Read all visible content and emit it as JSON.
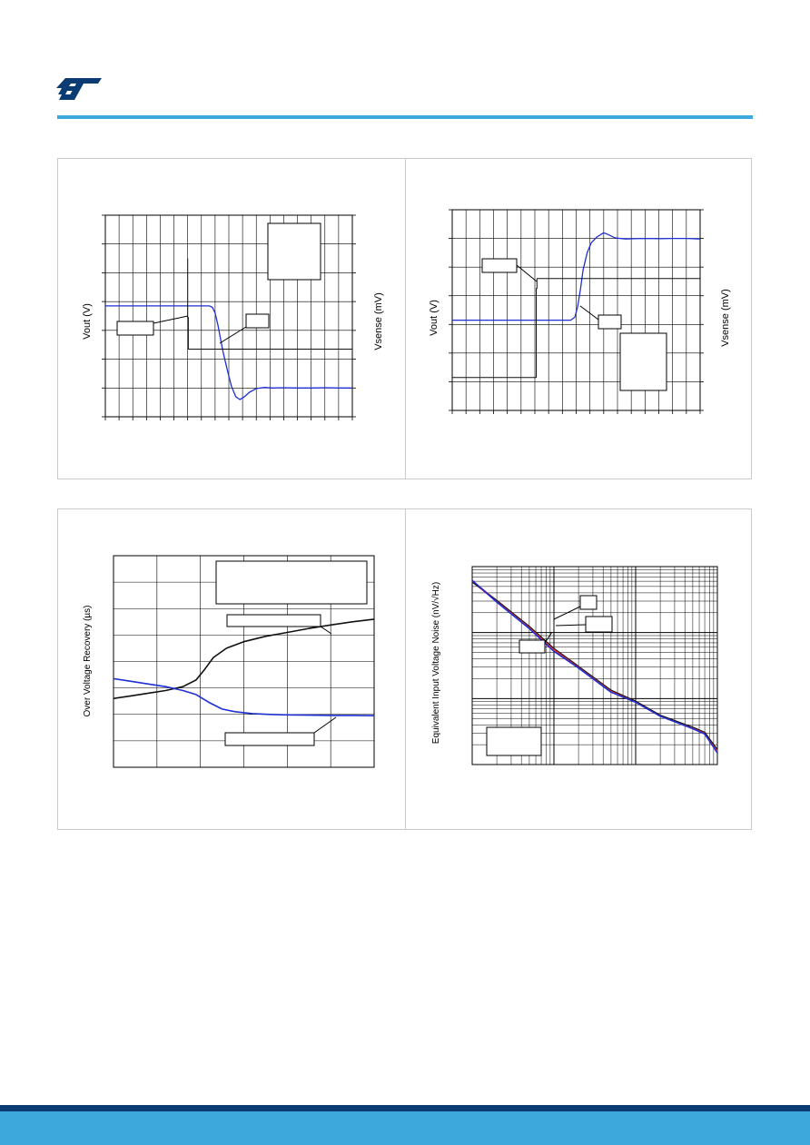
{
  "colors": {
    "brand_blue": "#3ca9dc",
    "footer_dark": "#0b3b73",
    "frame": "#c9c9c9",
    "grid": "#000000",
    "series_blue": "#1f2fd4",
    "series_black": "#111111",
    "series_red": "#e0302a"
  },
  "header": {
    "logo_icon": "st-logo-icon"
  },
  "chart_data": [
    {
      "type": "line",
      "xlabel": "",
      "ylabel": "Vout (V)",
      "ylabel_right": "Vsense (mV)",
      "xlim": [
        0,
        18
      ],
      "ylim": [
        0,
        7
      ],
      "grid": true,
      "series": [
        {
          "x": [
            0,
            7.6,
            7.8,
            8.0,
            8.2,
            8.4,
            8.6,
            8.9,
            9.2,
            9.5,
            9.8,
            10.1,
            10.5,
            11.0,
            11.6,
            12.2,
            13.0,
            14.0,
            15.0,
            16.0,
            17.0,
            18.0
          ],
          "y": [
            3.85,
            3.85,
            3.8,
            3.6,
            3.2,
            2.7,
            2.2,
            1.6,
            1.05,
            0.7,
            0.6,
            0.68,
            0.85,
            0.98,
            1.02,
            1.0,
            1.01,
            1.0,
            1.0,
            1.01,
            1.0,
            1.0
          ]
        },
        {
          "x": [
            6.0,
            6.0,
            6.05,
            6.05,
            18.0
          ],
          "y": [
            5.5,
            3.45,
            3.45,
            2.35,
            2.35
          ]
        }
      ]
    },
    {
      "type": "line",
      "xlabel": "",
      "ylabel": "Vout (V)",
      "ylabel_right": "Vsense (mV)",
      "xlim": [
        0,
        18
      ],
      "ylim": [
        0,
        7
      ],
      "grid": true,
      "series": [
        {
          "x": [
            0,
            8.6,
            8.9,
            9.1,
            9.3,
            9.5,
            9.8,
            10.1,
            10.5,
            11.0,
            11.4,
            11.8,
            12.2,
            12.6,
            13.2,
            14.0,
            15.0,
            16.0,
            17.0,
            18.0
          ],
          "y": [
            3.15,
            3.15,
            3.25,
            3.6,
            4.2,
            4.9,
            5.5,
            5.85,
            6.05,
            6.2,
            6.12,
            6.02,
            6.0,
            5.98,
            5.99,
            6.0,
            5.99,
            6.0,
            6.0,
            5.98
          ]
        },
        {
          "x": [
            0,
            6.1,
            6.1,
            6.15,
            6.15,
            18.0
          ],
          "y": [
            1.15,
            1.15,
            4.25,
            4.25,
            4.6,
            4.6
          ]
        }
      ]
    },
    {
      "type": "line",
      "xlabel": "",
      "ylabel": "Over Voltage Recovery (µs)",
      "xlim": [
        0,
        6
      ],
      "ylim": [
        0,
        8
      ],
      "grid": true,
      "series": [
        {
          "x": [
            0,
            0.4,
            0.8,
            1.2,
            1.6,
            1.9,
            2.1,
            2.3,
            2.6,
            3.0,
            3.5,
            4.0,
            4.5,
            5.0,
            5.5,
            6.0
          ],
          "y": [
            2.6,
            2.7,
            2.8,
            2.9,
            3.05,
            3.3,
            3.7,
            4.15,
            4.5,
            4.75,
            4.95,
            5.1,
            5.25,
            5.38,
            5.5,
            5.6
          ]
        },
        {
          "x": [
            0,
            0.4,
            0.8,
            1.2,
            1.6,
            1.9,
            2.2,
            2.5,
            2.8,
            3.2,
            3.6,
            4.0,
            4.5,
            5.0,
            5.5,
            6.0
          ],
          "y": [
            3.35,
            3.25,
            3.15,
            3.05,
            2.9,
            2.75,
            2.45,
            2.2,
            2.1,
            2.03,
            2.0,
            1.98,
            1.97,
            1.96,
            1.96,
            1.95
          ]
        }
      ]
    },
    {
      "type": "line",
      "xlabel": "",
      "ylabel": "Equivalent Input Voltage Noise (nV/√Hz)",
      "x_scale": "log",
      "y_scale": "log",
      "xlim": [
        0.1,
        100
      ],
      "ylim": [
        0.1,
        100
      ],
      "grid": true,
      "series": [
        {
          "x": [
            0.1,
            0.2,
            0.5,
            1,
            2,
            5,
            10,
            20,
            50,
            70,
            100
          ],
          "y": [
            60,
            30,
            12,
            5.5,
            3.0,
            1.3,
            0.9,
            0.55,
            0.36,
            0.3,
            0.16
          ]
        },
        {
          "x": [
            0.1,
            0.2,
            0.5,
            1,
            2,
            5,
            10,
            20,
            50,
            70,
            100
          ],
          "y": [
            58,
            31,
            12.5,
            5.8,
            3.1,
            1.35,
            0.92,
            0.56,
            0.37,
            0.31,
            0.17
          ]
        },
        {
          "x": [
            0.1,
            0.2,
            0.5,
            1,
            2,
            5,
            10,
            20,
            50,
            70,
            100
          ],
          "y": [
            62,
            29,
            11.5,
            5.2,
            2.9,
            1.25,
            0.88,
            0.54,
            0.35,
            0.29,
            0.15
          ]
        }
      ]
    }
  ]
}
